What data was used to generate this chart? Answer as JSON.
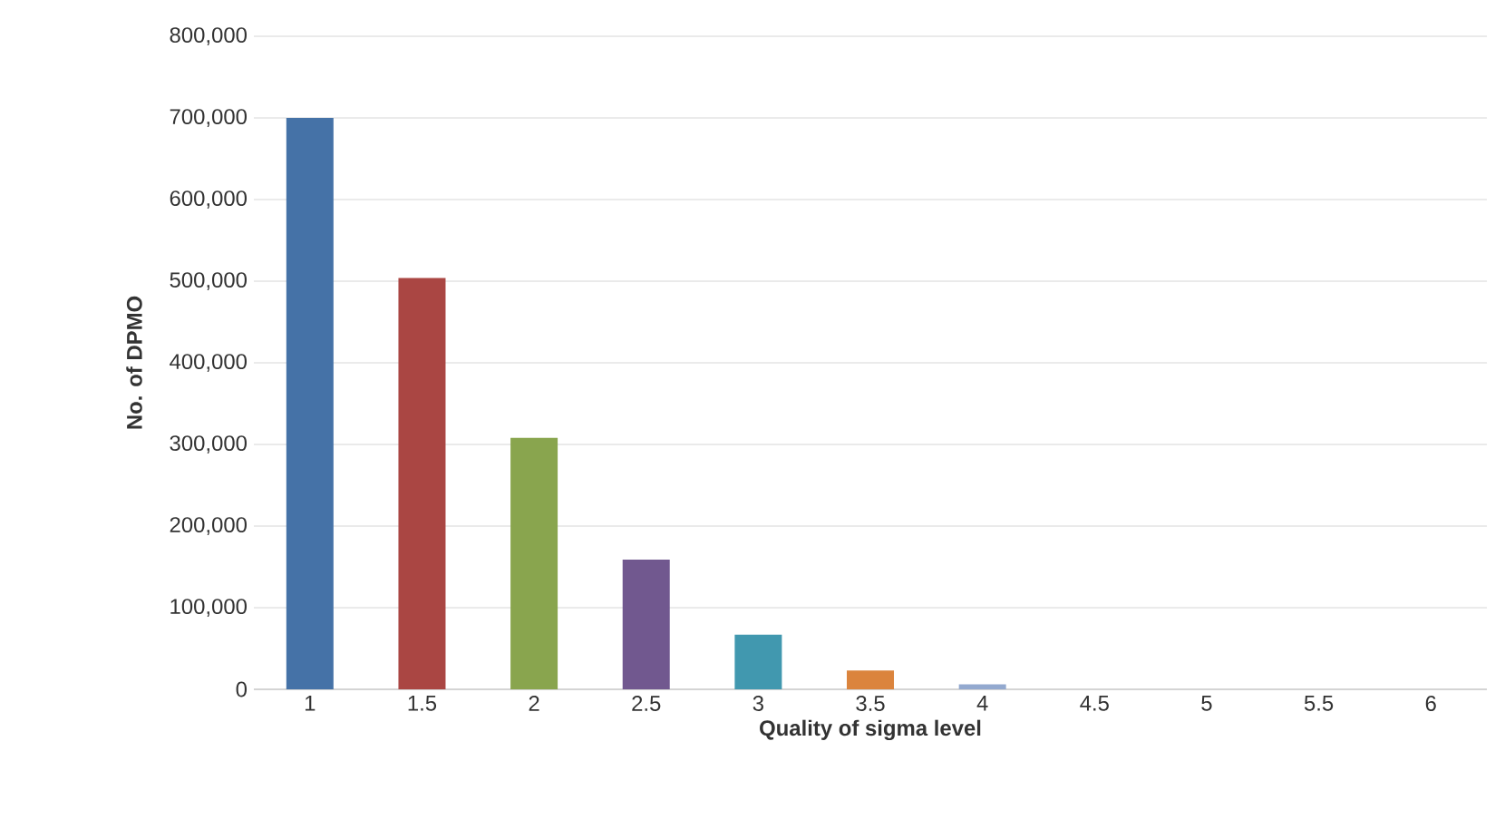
{
  "chart_data": {
    "type": "bar",
    "xlabel": "Quality of sigma level",
    "ylabel": "No. of DPMO",
    "categories": [
      "1",
      "1.5",
      "2",
      "2.5",
      "3",
      "3.5",
      "4",
      "4.5",
      "5",
      "5.5",
      "6"
    ],
    "values": [
      700000,
      504000,
      308000,
      159000,
      67000,
      23000,
      6000,
      null,
      0,
      0,
      0
    ],
    "colors": [
      "#4572a7",
      "#aa4643",
      "#89a54e",
      "#71588f",
      "#4198af",
      "#db843d",
      "#93a9cf",
      "#d19392",
      "#b9cd96",
      "#a99bbd",
      "#91c3d5"
    ],
    "ylim": [
      0,
      800000
    ],
    "yticks": [
      {
        "value": 0,
        "label": "0"
      },
      {
        "value": 100000,
        "label": "100,000"
      },
      {
        "value": 200000,
        "label": "200,000"
      },
      {
        "value": 300000,
        "label": "300,000"
      },
      {
        "value": 400000,
        "label": "400,000"
      },
      {
        "value": 500000,
        "label": "500,000"
      },
      {
        "value": 600000,
        "label": "600,000"
      },
      {
        "value": 700000,
        "label": "700,000"
      },
      {
        "value": 800000,
        "label": "800,000"
      }
    ],
    "grid": "y"
  }
}
